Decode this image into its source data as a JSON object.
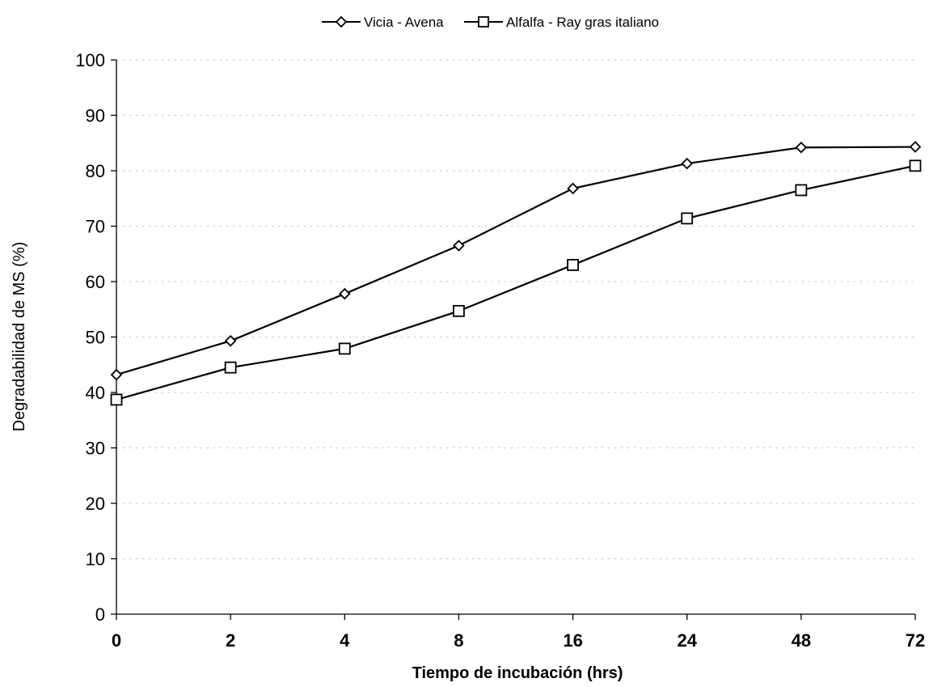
{
  "chart_data": {
    "type": "line",
    "title": "",
    "xlabel": "Tiempo de incubación (hrs)",
    "ylabel": "Degradabilidad de MS (%)",
    "categories": [
      "0",
      "2",
      "4",
      "8",
      "16",
      "24",
      "48",
      "72"
    ],
    "ylim": [
      0,
      100
    ],
    "yticks": [
      0,
      10,
      20,
      30,
      40,
      50,
      60,
      70,
      80,
      90,
      100
    ],
    "grid": "dotted horizontal",
    "legend_position": "top",
    "series": [
      {
        "name": "Vicia - Avena",
        "marker": "diamond",
        "values": [
          43.2,
          49.3,
          57.8,
          66.5,
          76.8,
          81.3,
          84.2,
          84.3
        ]
      },
      {
        "name": "Alfalfa - Ray gras italiano",
        "marker": "square",
        "values": [
          38.7,
          44.5,
          47.9,
          54.7,
          63.0,
          71.4,
          76.5,
          80.9
        ]
      }
    ]
  }
}
